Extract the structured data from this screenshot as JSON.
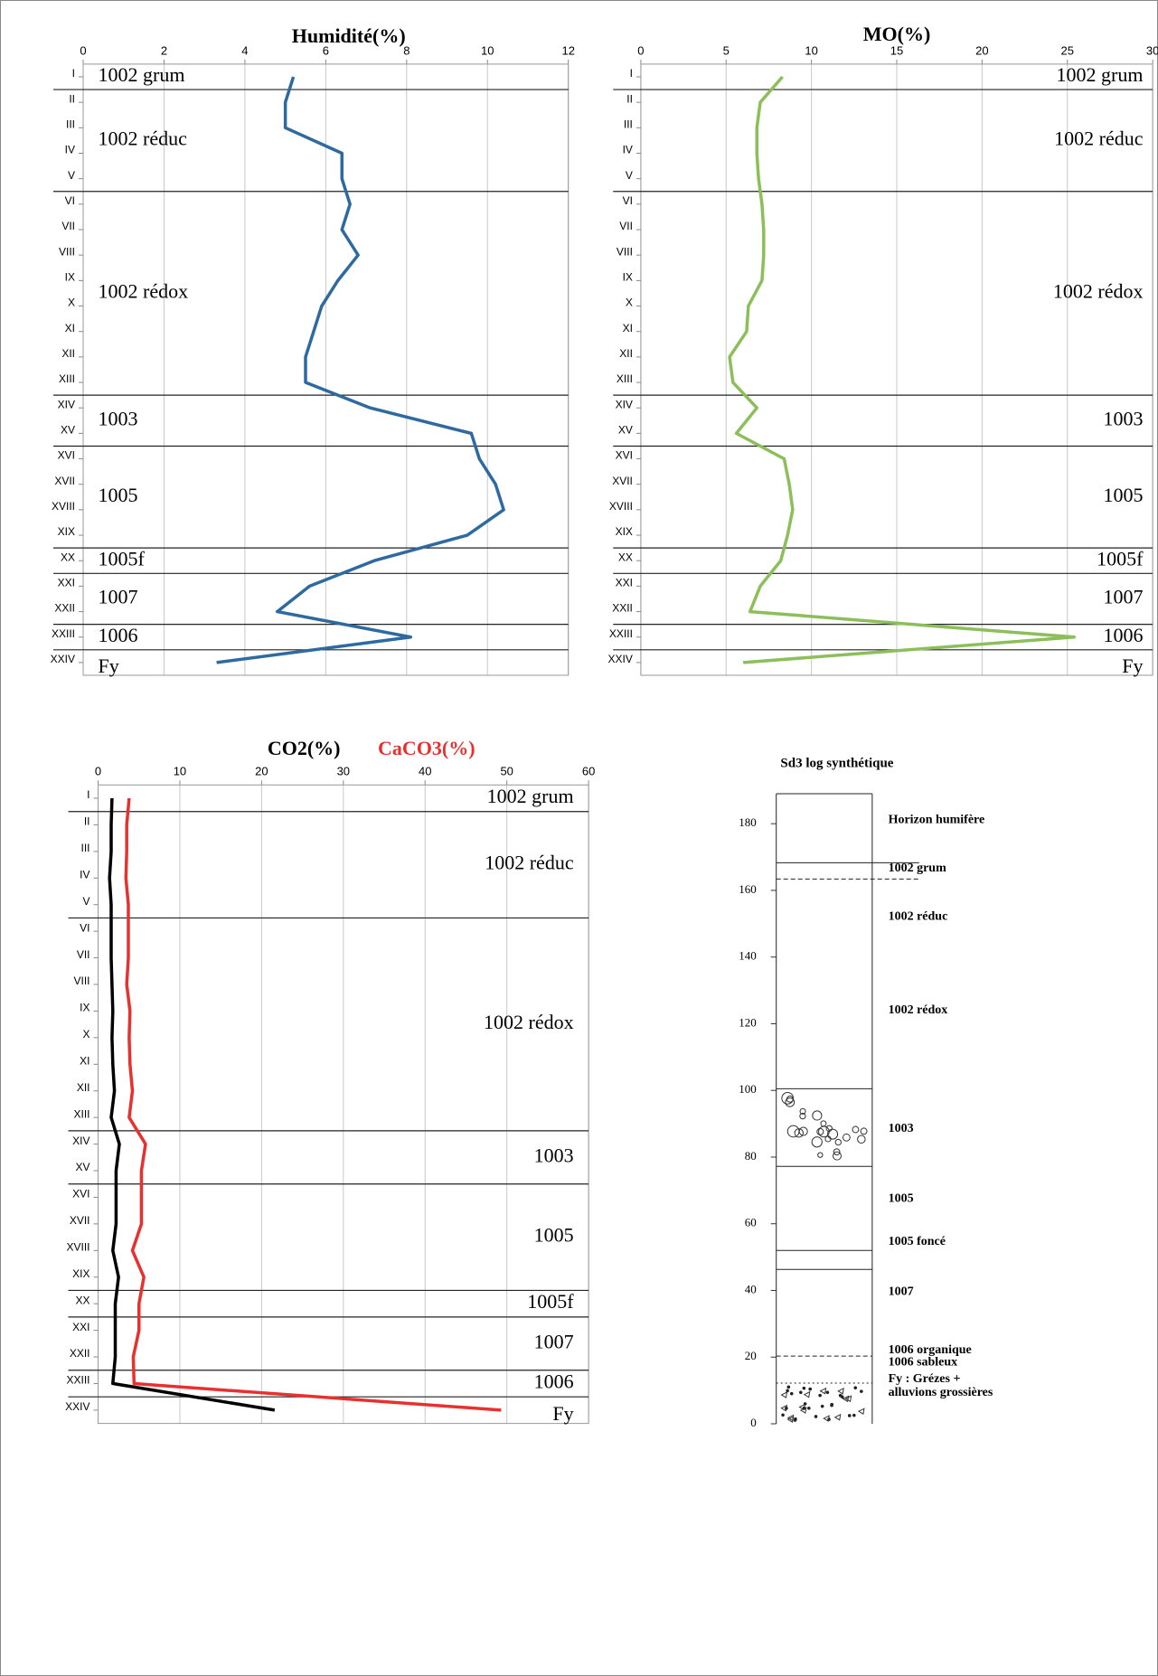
{
  "chart_data": [
    {
      "type": "profile",
      "title": "Humidité(%)",
      "categories": [
        "I",
        "II",
        "III",
        "IV",
        "V",
        "VI",
        "VII",
        "VIII",
        "IX",
        "X",
        "XI",
        "XII",
        "XIII",
        "XIV",
        "XV",
        "XVI",
        "XVII",
        "XVIII",
        "XIX",
        "XX",
        "XXI",
        "XXII",
        "XXIII",
        "XXIV"
      ],
      "values": [
        5.2,
        5.0,
        5.0,
        6.4,
        6.4,
        6.6,
        6.4,
        6.8,
        6.3,
        5.9,
        5.7,
        5.5,
        5.5,
        7.1,
        9.6,
        9.8,
        10.2,
        10.4,
        9.5,
        7.2,
        5.6,
        4.8,
        8.1,
        3.3
      ],
      "color": "#2e6aa0",
      "xlim": [
        0,
        12
      ],
      "xticks": [
        0,
        2,
        4,
        6,
        8,
        10,
        12
      ],
      "grid": true,
      "horizons": [
        "1002 grum",
        "1002 réduc",
        "1002 rédox",
        "1003",
        "1005",
        "1005f",
        "1007",
        "1006",
        "Fy"
      ]
    },
    {
      "type": "profile",
      "title": "MO(%)",
      "categories": [
        "I",
        "II",
        "III",
        "IV",
        "V",
        "VI",
        "VII",
        "VIII",
        "IX",
        "X",
        "XI",
        "XII",
        "XIII",
        "XIV",
        "XV",
        "XVI",
        "XVII",
        "XVIII",
        "XIX",
        "XX",
        "XXI",
        "XXII",
        "XXIII",
        "XXIV"
      ],
      "values": [
        8.3,
        7.0,
        6.8,
        6.8,
        6.9,
        7.1,
        7.2,
        7.2,
        7.1,
        6.3,
        6.2,
        5.2,
        5.4,
        6.8,
        5.6,
        8.4,
        8.7,
        8.9,
        8.6,
        8.2,
        7.0,
        6.4,
        25.4,
        6.0
      ],
      "color": "#8cbf5a",
      "xlim": [
        0,
        30
      ],
      "xticks": [
        0,
        5,
        10,
        15,
        20,
        25,
        30
      ],
      "grid": true,
      "horizons": [
        "1002 grum",
        "1002 réduc",
        "1002 rédox",
        "1003",
        "1005",
        "1005f",
        "1007",
        "1006",
        "Fy"
      ]
    },
    {
      "type": "profile",
      "categories": [
        "I",
        "II",
        "III",
        "IV",
        "V",
        "VI",
        "VII",
        "VIII",
        "IX",
        "X",
        "XI",
        "XII",
        "XIII",
        "XIV",
        "XV",
        "XVI",
        "XVII",
        "XVIII",
        "XIX",
        "XX",
        "XXI",
        "XXII",
        "XXIII",
        "XXIV"
      ],
      "series": [
        {
          "name": "CO2(%)",
          "color": "#000000",
          "values": [
            1.7,
            1.6,
            1.6,
            1.4,
            1.6,
            1.6,
            1.6,
            1.7,
            1.8,
            1.7,
            1.8,
            2.0,
            1.6,
            2.6,
            2.2,
            2.2,
            2.2,
            1.8,
            2.5,
            2.1,
            2.1,
            2.1,
            1.8,
            21.6
          ]
        },
        {
          "name": "CaCO3(%)",
          "color": "#e8312f",
          "values": [
            3.8,
            3.5,
            3.5,
            3.4,
            3.7,
            3.7,
            3.7,
            3.5,
            3.9,
            3.8,
            3.9,
            4.2,
            3.8,
            5.8,
            5.3,
            5.3,
            5.3,
            4.2,
            5.6,
            5.0,
            5.0,
            4.3,
            4.4,
            49.3
          ]
        }
      ],
      "xlim": [
        0,
        60
      ],
      "xticks": [
        0,
        10,
        20,
        30,
        40,
        50,
        60
      ],
      "grid": true,
      "horizons": [
        "1002 grum",
        "1002 réduc",
        "1002 rédox",
        "1003",
        "1005",
        "1005f",
        "1007",
        "1006",
        "Fy"
      ]
    },
    {
      "type": "stratigraphy",
      "title": "Sd3 log synthétique",
      "ylim": [
        0,
        189
      ],
      "yticks": [
        0,
        20,
        40,
        60,
        80,
        100,
        120,
        140,
        160,
        180
      ],
      "boundaries": [
        {
          "value": 189,
          "style": "solid"
        },
        {
          "value": 168.3,
          "style": "solid"
        },
        {
          "value": 163.4,
          "style": "dashed"
        },
        {
          "value": 100.5,
          "style": "solid"
        },
        {
          "value": 77.2,
          "style": "solid"
        },
        {
          "value": 52,
          "style": "solid"
        },
        {
          "value": 46.3,
          "style": "solid"
        },
        {
          "value": 20.3,
          "style": "dashed"
        },
        {
          "value": 12.2,
          "style": "dotted"
        }
      ],
      "labels": [
        {
          "text": [
            "Horizon humifère"
          ],
          "y": 181
        },
        {
          "text": [
            "1002 grum"
          ],
          "y": 166.5
        },
        {
          "text": [
            "1002 réduc"
          ],
          "y": 152
        },
        {
          "text": [
            "1002 rédox"
          ],
          "y": 124
        },
        {
          "text": [
            "1003"
          ],
          "y": 88.5
        },
        {
          "text": [
            "1005"
          ],
          "y": 67.5
        },
        {
          "text": [
            "1005 foncé"
          ],
          "y": 54.5
        },
        {
          "text": [
            "1007"
          ],
          "y": 39.5
        },
        {
          "text": [
            "1006 organique"
          ],
          "y": 22
        },
        {
          "text": [
            "1006 sableux"
          ],
          "y": 18.3
        },
        {
          "text": [
            "Fy : Grézes +",
            "alluvions grossières"
          ],
          "y": 11.3
        }
      ]
    }
  ]
}
